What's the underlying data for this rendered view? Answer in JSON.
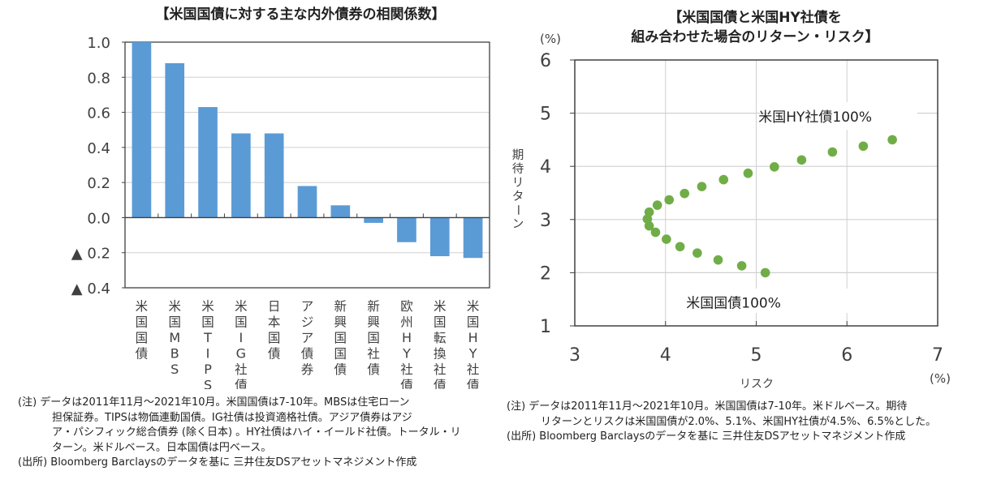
{
  "colors": {
    "bar": "#5b9bd5",
    "point": "#70ad47",
    "grid": "#d0d0d0",
    "axis": "#404040",
    "text": "#404040"
  },
  "chart_data": [
    {
      "type": "bar",
      "title": "【米国国債に対する主な内外債券の相関係数】",
      "xlabel": "",
      "ylabel": "",
      "categories": [
        "米国国債",
        "米国MBS",
        "米国TIPS",
        "米国IG社債",
        "日本国債",
        "アジア債券",
        "新興国国債",
        "新興国社債",
        "欧州HY社債",
        "米国転換社債",
        "米国HY社債"
      ],
      "values": [
        1.0,
        0.88,
        0.63,
        0.48,
        0.48,
        0.18,
        0.07,
        -0.03,
        -0.14,
        -0.22,
        -0.23
      ],
      "ylim": [
        -0.4,
        1.0
      ],
      "yticks": [
        1.0,
        0.8,
        0.6,
        0.4,
        0.2,
        0.0,
        -0.2,
        -0.4
      ],
      "ytick_labels": [
        "1.0",
        "0.8",
        "0.6",
        "0.4",
        "0.2",
        "0.0",
        "▲ 0.2",
        "▲ 0.4"
      ],
      "grid": true
    },
    {
      "type": "scatter",
      "title_lines": [
        "【米国国債と米国HY社債を",
        "組み合わせた場合のリターン・リスク】"
      ],
      "xlabel": "リスク",
      "ylabel": "期待リターン",
      "x_unit": "(%)",
      "y_unit": "(%)",
      "xlim": [
        3,
        7
      ],
      "ylim": [
        1,
        6
      ],
      "xticks": [
        3,
        4,
        5,
        6,
        7
      ],
      "yticks": [
        1,
        2,
        3,
        4,
        5,
        6
      ],
      "grid": true,
      "points": [
        {
          "x": 5.1,
          "y": 2.0
        },
        {
          "x": 4.84,
          "y": 2.13
        },
        {
          "x": 4.58,
          "y": 2.24
        },
        {
          "x": 4.35,
          "y": 2.37
        },
        {
          "x": 4.16,
          "y": 2.49
        },
        {
          "x": 4.01,
          "y": 2.63
        },
        {
          "x": 3.89,
          "y": 2.76
        },
        {
          "x": 3.82,
          "y": 2.88
        },
        {
          "x": 3.8,
          "y": 3.01
        },
        {
          "x": 3.82,
          "y": 3.14
        },
        {
          "x": 3.91,
          "y": 3.27
        },
        {
          "x": 4.04,
          "y": 3.37
        },
        {
          "x": 4.21,
          "y": 3.49
        },
        {
          "x": 4.4,
          "y": 3.62
        },
        {
          "x": 4.64,
          "y": 3.75
        },
        {
          "x": 4.91,
          "y": 3.87
        },
        {
          "x": 5.2,
          "y": 3.99
        },
        {
          "x": 5.5,
          "y": 4.12
        },
        {
          "x": 5.84,
          "y": 4.27
        },
        {
          "x": 6.18,
          "y": 4.38
        },
        {
          "x": 6.5,
          "y": 4.5
        }
      ],
      "annotations": [
        {
          "text": "米国HY社債100%",
          "x": 5.65,
          "y": 4.95
        },
        {
          "text": "米国国債100%",
          "x": 4.75,
          "y": 1.45
        }
      ]
    }
  ],
  "left_notes": {
    "lines": [
      "(注) データは2011年11月～2021年10月。米国国債は7-10年。MBSは住宅ローン",
      "担保証券。TIPSは物価連動国債。IG社債は投資適格社債。アジア債券はアジ",
      "ア・パシフィック総合債券 (除く日本) 。HY社債はハイ・イールド社債。トータル・リ",
      "ターン。米ドルベース。日本国債は円ベース。"
    ],
    "source": "(出所) Bloomberg Barclaysのデータを基に 三井住友DSアセットマネジメント作成"
  },
  "right_notes": {
    "lines": [
      "(注) データは2011年11月～2021年10月。米国国債は7-10年。米ドルベース。期待",
      "リターンとリスクは米国国債が2.0%、5.1%、米国HY社債が4.5%、6.5%とした。"
    ],
    "source": "(出所) Bloomberg Barclaysのデータを基に 三井住友DSアセットマネジメント作成"
  }
}
